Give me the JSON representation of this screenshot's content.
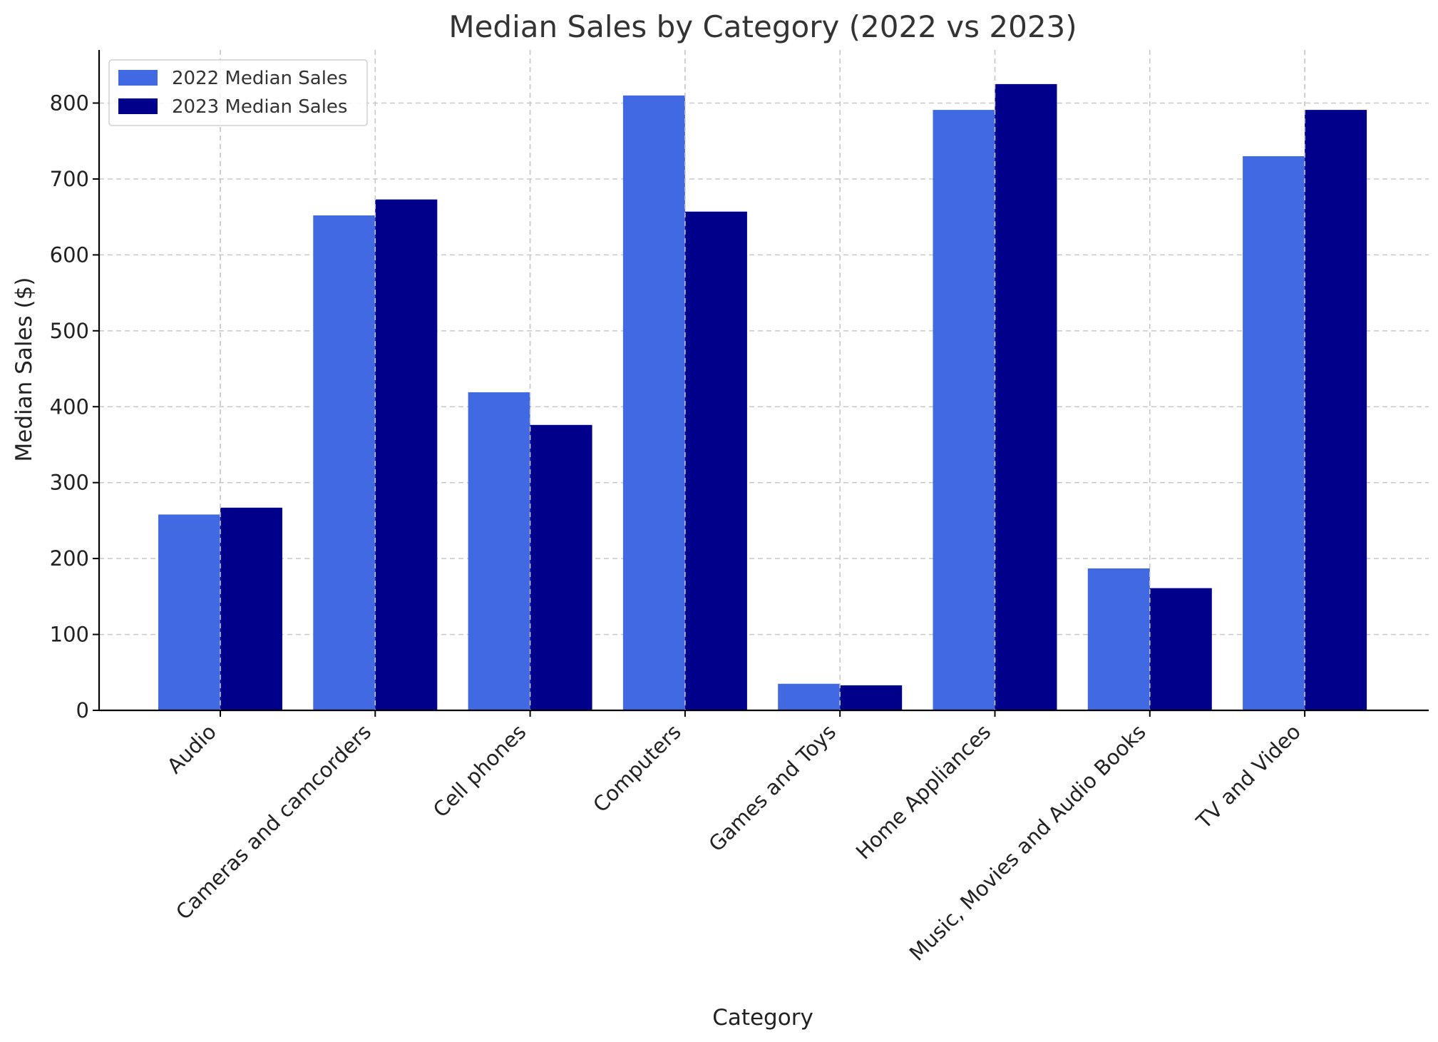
{
  "chart_data": {
    "type": "bar",
    "title": "Median Sales by Category (2022 vs 2023)",
    "xlabel": "Category",
    "ylabel": "Median Sales ($)",
    "ylim": [
      0,
      870
    ],
    "yticks": [
      0,
      100,
      200,
      300,
      400,
      500,
      600,
      700,
      800
    ],
    "grid": true,
    "legend_position": "top-left",
    "categories": [
      "Audio",
      "Cameras and camcorders",
      "Cell phones",
      "Computers",
      "Games and Toys",
      "Home Appliances",
      "Music, Movies and Audio Books",
      "TV and Video"
    ],
    "series": [
      {
        "name": "2022 Median Sales",
        "color": "#4169e1",
        "values": [
          258,
          652,
          419,
          810,
          35,
          791,
          187,
          730
        ]
      },
      {
        "name": "2023 Median Sales",
        "color": "#00008b",
        "values": [
          267,
          673,
          376,
          657,
          33,
          825,
          161,
          791
        ]
      }
    ]
  }
}
